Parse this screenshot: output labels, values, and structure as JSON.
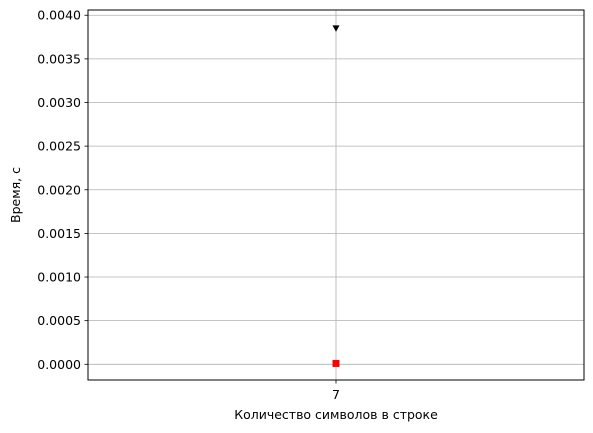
{
  "chart_data": {
    "type": "scatter",
    "xlabel": "Количество символов в строке",
    "ylabel": "Время, с",
    "x_ticks": [
      "7"
    ],
    "y_ticks": [
      "0.0000",
      "0.0005",
      "0.0010",
      "0.0015",
      "0.0020",
      "0.0025",
      "0.0030",
      "0.0035",
      "0.0040"
    ],
    "ylim": [
      -0.00018,
      0.00406
    ],
    "grid": true,
    "series": [
      {
        "marker": "triangle-down",
        "color": "#000000",
        "points": [
          {
            "x": "7",
            "y": 0.00385
          }
        ]
      },
      {
        "marker": "circle",
        "color": "#1f77b4",
        "points": [
          {
            "x": "7",
            "y": 1e-05
          }
        ]
      },
      {
        "marker": "square",
        "color": "#ff0000",
        "points": [
          {
            "x": "7",
            "y": 1e-05
          }
        ]
      }
    ]
  }
}
